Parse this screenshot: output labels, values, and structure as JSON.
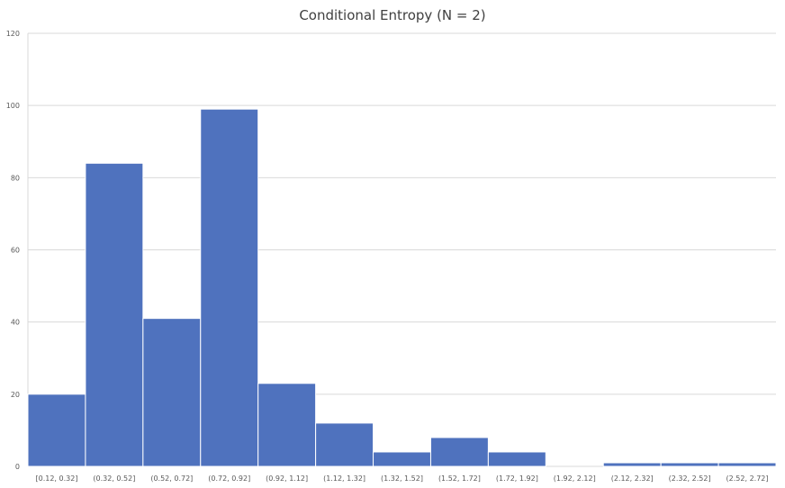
{
  "chart_data": {
    "type": "bar",
    "title": "Conditional Entropy (N = 2)",
    "xlabel": "",
    "ylabel": "",
    "categories": [
      "[0.12, 0.32]",
      "(0.32, 0.52]",
      "(0.52, 0.72]",
      "(0.72, 0.92]",
      "(0.92, 1.12]",
      "(1.12, 1.32]",
      "(1.32, 1.52]",
      "(1.52, 1.72]",
      "(1.72, 1.92]",
      "(1.92, 2.12]",
      "(2.12, 2.32]",
      "(2.32, 2.52]",
      "(2.52, 2.72]"
    ],
    "values": [
      20,
      84,
      41,
      99,
      23,
      12,
      4,
      8,
      4,
      0,
      1,
      1,
      1
    ],
    "ylim": [
      0,
      120
    ],
    "yticks": [
      "0",
      "20",
      "40",
      "60",
      "80",
      "100",
      "120"
    ],
    "grid": true,
    "legend": "none",
    "bar_color": "#4f72be",
    "grid_color": "#d9d9d9"
  }
}
